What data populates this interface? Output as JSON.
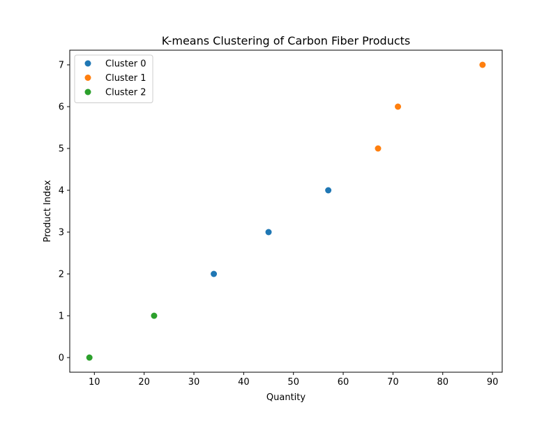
{
  "chart_data": {
    "type": "scatter",
    "title": "K-means Clustering of Carbon Fiber Products",
    "xlabel": "Quantity",
    "ylabel": "Product Index",
    "xlim": [
      5.05,
      91.95
    ],
    "ylim": [
      -0.35,
      7.35
    ],
    "x_ticks": [
      10,
      20,
      30,
      40,
      50,
      60,
      70,
      80,
      90
    ],
    "y_ticks": [
      0,
      1,
      2,
      3,
      4,
      5,
      6,
      7
    ],
    "grid": false,
    "legend_position": "upper-left",
    "series": [
      {
        "name": "Cluster 0",
        "color": "#1f77b4",
        "points": [
          {
            "x": 34,
            "y": 2
          },
          {
            "x": 45,
            "y": 3
          },
          {
            "x": 57,
            "y": 4
          }
        ]
      },
      {
        "name": "Cluster 1",
        "color": "#ff7f0e",
        "points": [
          {
            "x": 67,
            "y": 5
          },
          {
            "x": 71,
            "y": 6
          },
          {
            "x": 88,
            "y": 7
          }
        ]
      },
      {
        "name": "Cluster 2",
        "color": "#2ca02c",
        "points": [
          {
            "x": 9,
            "y": 0
          },
          {
            "x": 22,
            "y": 1
          }
        ]
      }
    ]
  }
}
